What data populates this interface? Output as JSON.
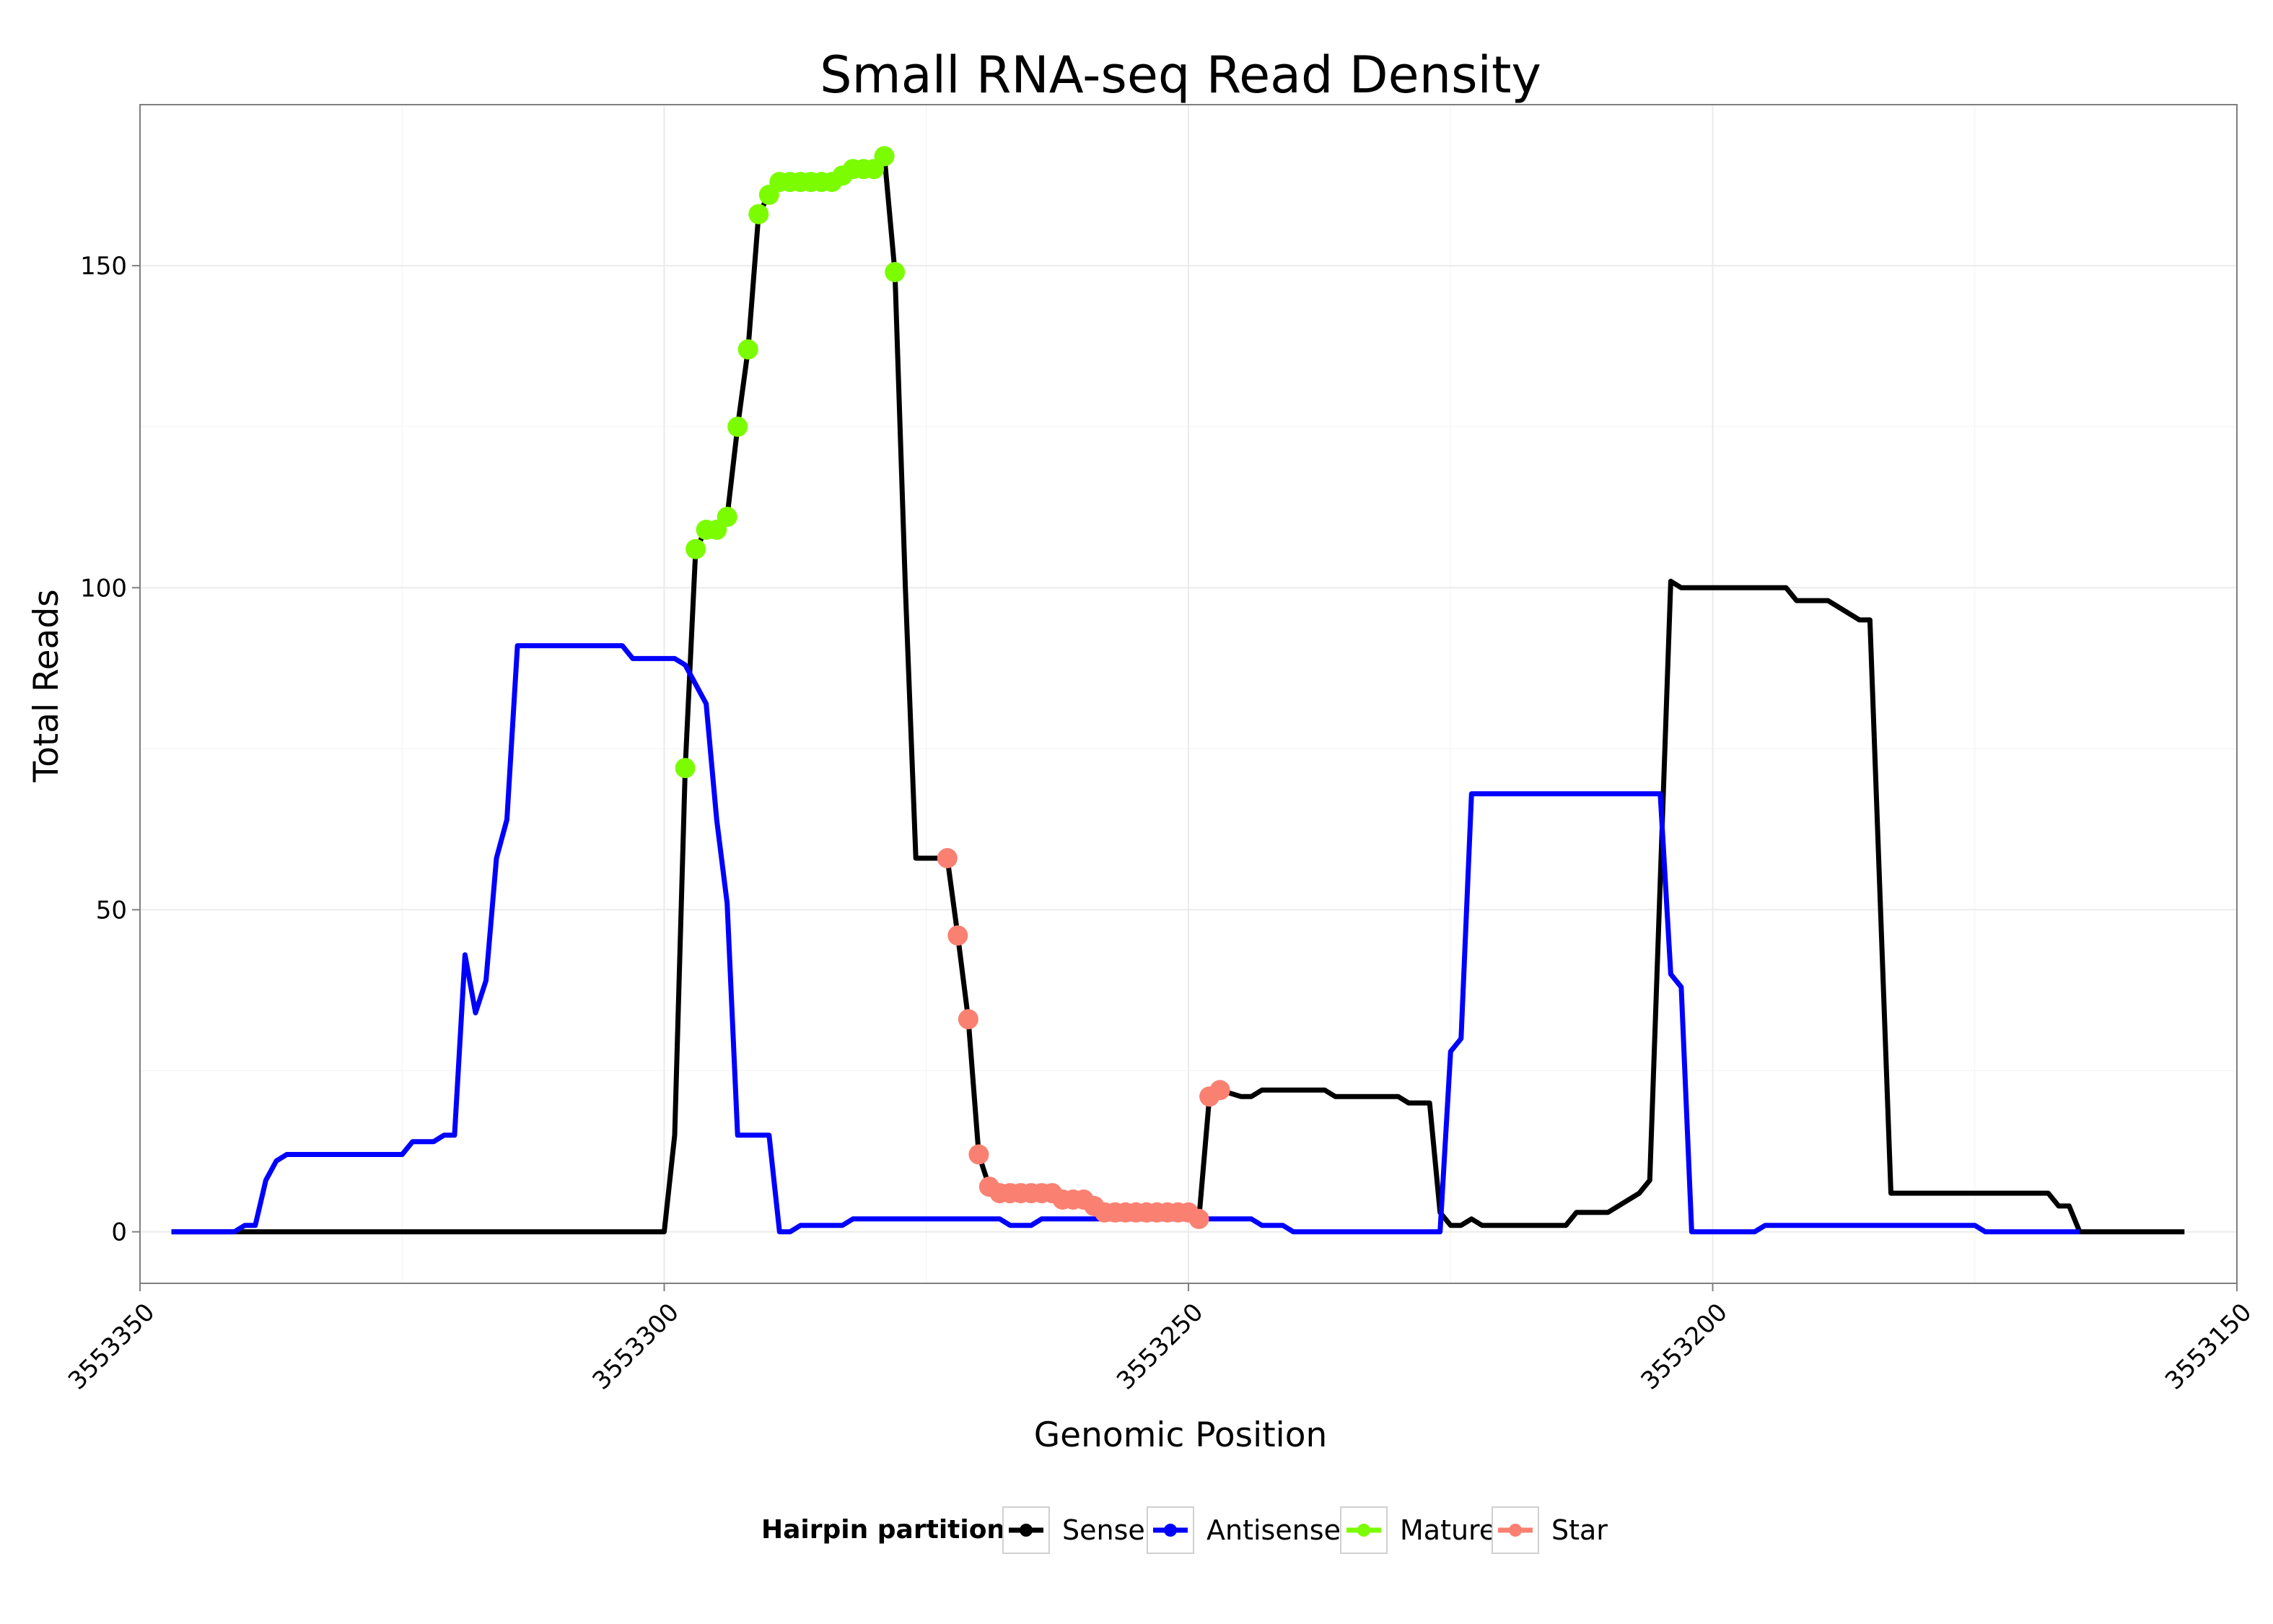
{
  "chart_data": {
    "type": "line",
    "title": "Small RNA-seq Read Density",
    "xlabel": "Genomic Position",
    "ylabel": "Total Reads",
    "xlim": [
      3553350,
      3553150
    ],
    "x_reversed": true,
    "ylim": [
      -8,
      175
    ],
    "x_ticks": [
      3553350,
      3553300,
      3553250,
      3553200,
      3553150
    ],
    "x_tick_labels": [
      "3553350",
      "3553300",
      "3553250",
      "3553200",
      "3553150"
    ],
    "y_ticks": [
      0,
      50,
      100,
      150
    ],
    "y_tick_labels": [
      "0",
      "50",
      "100",
      "150"
    ],
    "grid": true,
    "legend": {
      "title": "Hairpin partition",
      "position": "bottom",
      "entries": [
        {
          "name": "Sense",
          "color": "#000000"
        },
        {
          "name": "Antisense",
          "color": "#0000ff"
        },
        {
          "name": "Mature",
          "color": "#7cfc00"
        },
        {
          "name": "Star",
          "color": "#fa8072"
        }
      ]
    },
    "series": [
      {
        "name": "Sense",
        "kind": "line",
        "color": "#000000",
        "points": [
          [
            3553347,
            0
          ],
          [
            3553300,
            0
          ],
          [
            3553299,
            15
          ],
          [
            3553298,
            72
          ],
          [
            3553297,
            106
          ],
          [
            3553296,
            109
          ],
          [
            3553295,
            109
          ],
          [
            3553294,
            111
          ],
          [
            3553293,
            125
          ],
          [
            3553292,
            137
          ],
          [
            3553291,
            158
          ],
          [
            3553290,
            161
          ],
          [
            3553289,
            163
          ],
          [
            3553284,
            163
          ],
          [
            3553283,
            164
          ],
          [
            3553282,
            165
          ],
          [
            3553280,
            165
          ],
          [
            3553279,
            167
          ],
          [
            3553278,
            149
          ],
          [
            3553277,
            100
          ],
          [
            3553276,
            58
          ],
          [
            3553274,
            58
          ],
          [
            3553273,
            58
          ],
          [
            3553272,
            46
          ],
          [
            3553271,
            33
          ],
          [
            3553270,
            12
          ],
          [
            3553269,
            7
          ],
          [
            3553268,
            6
          ],
          [
            3553263,
            6
          ],
          [
            3553262,
            5
          ],
          [
            3553260,
            5
          ],
          [
            3553259,
            4
          ],
          [
            3553258,
            3
          ],
          [
            3553250,
            3
          ],
          [
            3553249,
            2
          ],
          [
            3553248,
            21
          ],
          [
            3553247,
            22
          ],
          [
            3553245,
            21
          ],
          [
            3553244,
            21
          ],
          [
            3553243,
            22
          ],
          [
            3553237,
            22
          ],
          [
            3553236,
            21
          ],
          [
            3553230,
            21
          ],
          [
            3553229,
            20
          ],
          [
            3553227,
            20
          ],
          [
            3553226,
            3
          ],
          [
            3553225,
            1
          ],
          [
            3553224,
            1
          ],
          [
            3553223,
            2
          ],
          [
            3553222,
            1
          ],
          [
            3553214,
            1
          ],
          [
            3553213,
            3
          ],
          [
            3553210,
            3
          ],
          [
            3553207,
            6
          ],
          [
            3553206,
            8
          ],
          [
            3553204,
            101
          ],
          [
            3553203,
            100
          ],
          [
            3553193,
            100
          ],
          [
            3553192,
            98
          ],
          [
            3553189,
            98
          ],
          [
            3553186,
            95
          ],
          [
            3553185,
            95
          ],
          [
            3553183,
            6
          ],
          [
            3553168,
            6
          ],
          [
            3553167,
            4
          ],
          [
            3553166,
            4
          ],
          [
            3553165,
            0
          ],
          [
            3553155,
            0
          ]
        ]
      },
      {
        "name": "Antisense",
        "kind": "line",
        "color": "#0000ff",
        "points": [
          [
            3553347,
            0
          ],
          [
            3553341,
            0
          ],
          [
            3553340,
            1
          ],
          [
            3553339,
            1
          ],
          [
            3553338,
            8
          ],
          [
            3553337,
            11
          ],
          [
            3553336,
            12
          ],
          [
            3553325,
            12
          ],
          [
            3553324,
            14
          ],
          [
            3553322,
            14
          ],
          [
            3553321,
            15
          ],
          [
            3553320,
            15
          ],
          [
            3553319,
            43
          ],
          [
            3553318,
            34
          ],
          [
            3553317,
            39
          ],
          [
            3553316,
            58
          ],
          [
            3553315,
            64
          ],
          [
            3553314,
            91
          ],
          [
            3553304,
            91
          ],
          [
            3553303,
            89
          ],
          [
            3553299,
            89
          ],
          [
            3553298,
            88
          ],
          [
            3553296,
            82
          ],
          [
            3553295,
            64
          ],
          [
            3553294,
            51
          ],
          [
            3553293,
            15
          ],
          [
            3553290,
            15
          ],
          [
            3553289,
            0
          ],
          [
            3553288,
            0
          ],
          [
            3553287,
            1
          ],
          [
            3553283,
            1
          ],
          [
            3553282,
            2
          ],
          [
            3553268,
            2
          ],
          [
            3553267,
            1
          ],
          [
            3553265,
            1
          ],
          [
            3553264,
            2
          ],
          [
            3553249,
            2
          ],
          [
            3553244,
            2
          ],
          [
            3553243,
            1
          ],
          [
            3553241,
            1
          ],
          [
            3553240,
            0
          ],
          [
            3553227,
            0
          ],
          [
            3553226,
            0
          ],
          [
            3553225,
            28
          ],
          [
            3553224,
            30
          ],
          [
            3553223,
            68
          ],
          [
            3553205,
            68
          ],
          [
            3553204,
            40
          ],
          [
            3553203,
            38
          ],
          [
            3553202,
            0
          ],
          [
            3553196,
            0
          ],
          [
            3553195,
            1
          ],
          [
            3553175,
            1
          ],
          [
            3553174,
            0
          ],
          [
            3553165,
            0
          ]
        ]
      },
      {
        "name": "Mature",
        "kind": "points",
        "color": "#7cfc00",
        "points": [
          [
            3553298,
            72
          ],
          [
            3553297,
            106
          ],
          [
            3553296,
            109
          ],
          [
            3553295,
            109
          ],
          [
            3553294,
            111
          ],
          [
            3553293,
            125
          ],
          [
            3553292,
            137
          ],
          [
            3553291,
            158
          ],
          [
            3553290,
            161
          ],
          [
            3553289,
            163
          ],
          [
            3553288,
            163
          ],
          [
            3553287,
            163
          ],
          [
            3553286,
            163
          ],
          [
            3553285,
            163
          ],
          [
            3553284,
            163
          ],
          [
            3553283,
            164
          ],
          [
            3553282,
            165
          ],
          [
            3553281,
            165
          ],
          [
            3553280,
            165
          ],
          [
            3553279,
            167
          ],
          [
            3553278,
            149
          ]
        ]
      },
      {
        "name": "Star",
        "kind": "points",
        "color": "#fa8072",
        "points": [
          [
            3553273,
            58
          ],
          [
            3553272,
            46
          ],
          [
            3553271,
            33
          ],
          [
            3553270,
            12
          ],
          [
            3553269,
            7
          ],
          [
            3553268,
            6
          ],
          [
            3553267,
            6
          ],
          [
            3553266,
            6
          ],
          [
            3553265,
            6
          ],
          [
            3553264,
            6
          ],
          [
            3553263,
            6
          ],
          [
            3553262,
            5
          ],
          [
            3553261,
            5
          ],
          [
            3553260,
            5
          ],
          [
            3553259,
            4
          ],
          [
            3553258,
            3
          ],
          [
            3553257,
            3
          ],
          [
            3553256,
            3
          ],
          [
            3553255,
            3
          ],
          [
            3553254,
            3
          ],
          [
            3553253,
            3
          ],
          [
            3553252,
            3
          ],
          [
            3553251,
            3
          ],
          [
            3553250,
            3
          ],
          [
            3553249,
            2
          ],
          [
            3553248,
            21
          ],
          [
            3553247,
            22
          ]
        ]
      }
    ]
  }
}
